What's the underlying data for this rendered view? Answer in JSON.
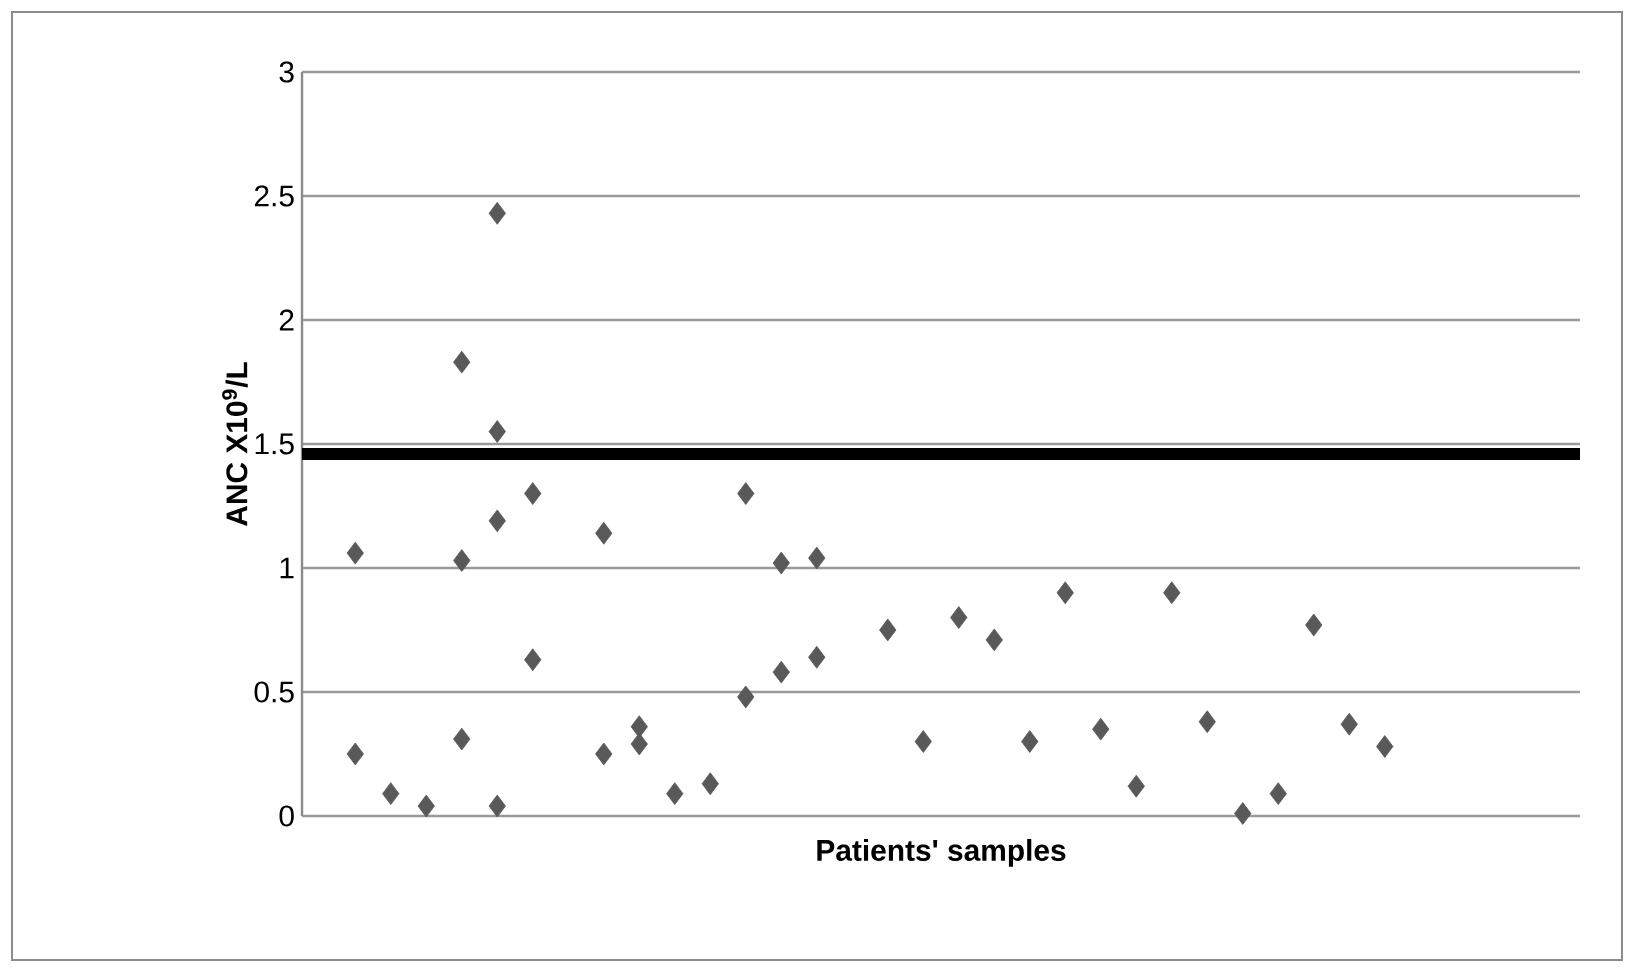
{
  "chart_data": {
    "type": "scatter",
    "xlabel": "Patients' samples",
    "ylabel": "ANC X10$^{9}$/L",
    "categories": [
      null,
      null,
      null,
      null,
      null,
      null,
      null,
      null,
      null,
      null,
      null,
      null,
      null,
      null,
      null,
      null,
      null,
      null,
      null,
      null,
      null,
      null,
      null,
      null,
      null,
      null,
      null,
      null,
      null,
      null,
      null,
      null,
      null,
      null,
      null,
      null
    ],
    "series": [
      {
        "color": "#595959",
        "values": [
          null,
          1.06,
          0.09,
          0.04,
          1.83,
          2.43,
          1.3,
          null,
          1.14,
          0.36,
          0.09,
          0.13,
          1.3,
          1.02,
          1.04,
          null,
          0.75,
          0.3,
          0.8,
          0.71,
          0.3,
          0.9,
          0.35,
          0.12,
          0.9,
          0.38,
          0.01,
          0.09,
          0.77,
          0.37,
          0.28,
          null,
          null,
          null,
          null,
          null
        ]
      },
      {
        "color": "#595959",
        "values": [
          null,
          0.25,
          null,
          null,
          1.03,
          1.55,
          0.63,
          null,
          0.25,
          0.29,
          null,
          null,
          0.48,
          0.58,
          0.64,
          null,
          null,
          null,
          null,
          null,
          null,
          null,
          null,
          null,
          null,
          null,
          null,
          null,
          null,
          null,
          null,
          null,
          null,
          null,
          null,
          null
        ]
      },
      {
        "color": "#595959",
        "values": [
          null,
          null,
          null,
          null,
          0.31,
          1.19,
          null,
          null,
          null,
          null,
          null,
          null,
          null,
          null,
          null,
          null,
          null,
          null,
          null,
          null,
          null,
          null,
          null,
          null,
          null,
          null,
          null,
          null,
          null,
          null,
          null,
          null,
          null,
          null,
          null,
          null
        ]
      },
      {
        "color": "#595959",
        "values": [
          null,
          null,
          null,
          null,
          null,
          0.04,
          null,
          null,
          null,
          null,
          null,
          null,
          null,
          null,
          null,
          null,
          null,
          null,
          null,
          null,
          null,
          null,
          null,
          null,
          null,
          null,
          null,
          null,
          null,
          null,
          null,
          null,
          null,
          null,
          null,
          null
        ]
      }
    ],
    "marker": "diamond",
    "ylim": [
      0,
      3
    ],
    "yticks": [
      0,
      0.5,
      1,
      1.5,
      2,
      2.5,
      3
    ],
    "tick_labels": "y",
    "grid": "y",
    "ref_lines": [
      {
        "axis": "y",
        "value": 1.46,
        "color": "#000000"
      }
    ]
  }
}
